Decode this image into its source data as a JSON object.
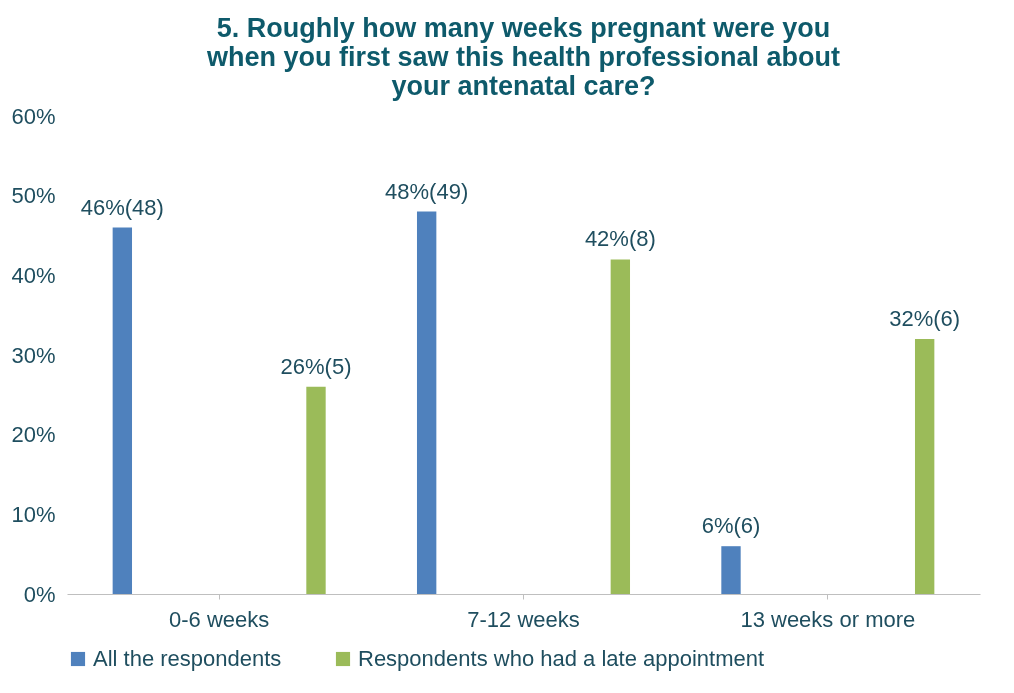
{
  "chart_data": {
    "type": "bar",
    "title": "5. Roughly how many weeks pregnant were you\nwhen you first saw this health professional about\nyour antenatal care?",
    "categories": [
      "0-6 weeks",
      "7-12 weeks",
      "13 weeks or more"
    ],
    "series": [
      {
        "name": "All the respondents",
        "color": "#4f81bd",
        "values": [
          46,
          48,
          6
        ],
        "value_labels": [
          "46%(48)",
          "48%(49)",
          "6%(6)"
        ]
      },
      {
        "name": "Respondents who had a late appointment",
        "color": "#9bbb59",
        "values": [
          26,
          42,
          32
        ],
        "value_labels": [
          "26%(5)",
          "42%(8)",
          "32%(6)"
        ]
      }
    ],
    "ylim": [
      0,
      60
    ],
    "yticks": [
      {
        "value": 0,
        "label": "0%"
      },
      {
        "value": 10,
        "label": "10%"
      },
      {
        "value": 20,
        "label": "20%"
      },
      {
        "value": 30,
        "label": "30%"
      },
      {
        "value": 40,
        "label": "40%"
      },
      {
        "value": 50,
        "label": "50%"
      },
      {
        "value": 60,
        "label": "60%"
      }
    ],
    "grid": false,
    "legend": "bottom"
  }
}
